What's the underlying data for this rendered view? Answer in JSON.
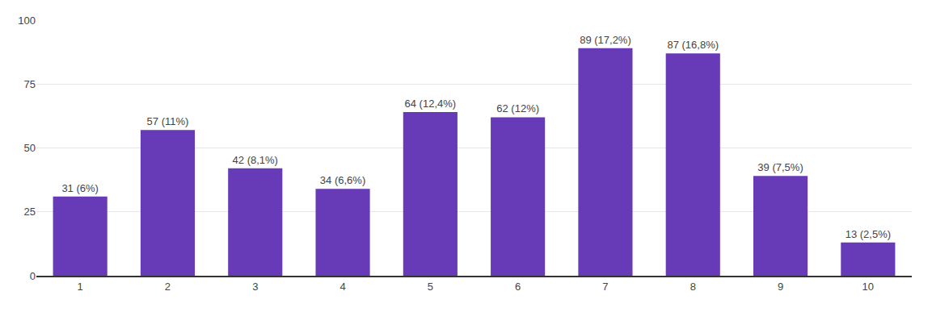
{
  "chart_data": {
    "type": "bar",
    "categories": [
      "1",
      "2",
      "3",
      "4",
      "5",
      "6",
      "7",
      "8",
      "9",
      "10"
    ],
    "values": [
      31,
      57,
      42,
      34,
      64,
      62,
      89,
      87,
      39,
      13
    ],
    "value_labels": [
      "31 (6%)",
      "57 (11%)",
      "42 (8,1%)",
      "34 (6,6%)",
      "64 (12,4%)",
      "62 (12%)",
      "89 (17,2%)",
      "87 (16,8%)",
      "39 (7,5%)",
      "13 (2,5%)"
    ],
    "data_labels": true,
    "color": "#673ab7",
    "ylim": [
      0,
      100
    ],
    "yticks": [
      0,
      25,
      50,
      75,
      100
    ],
    "grid": true
  }
}
